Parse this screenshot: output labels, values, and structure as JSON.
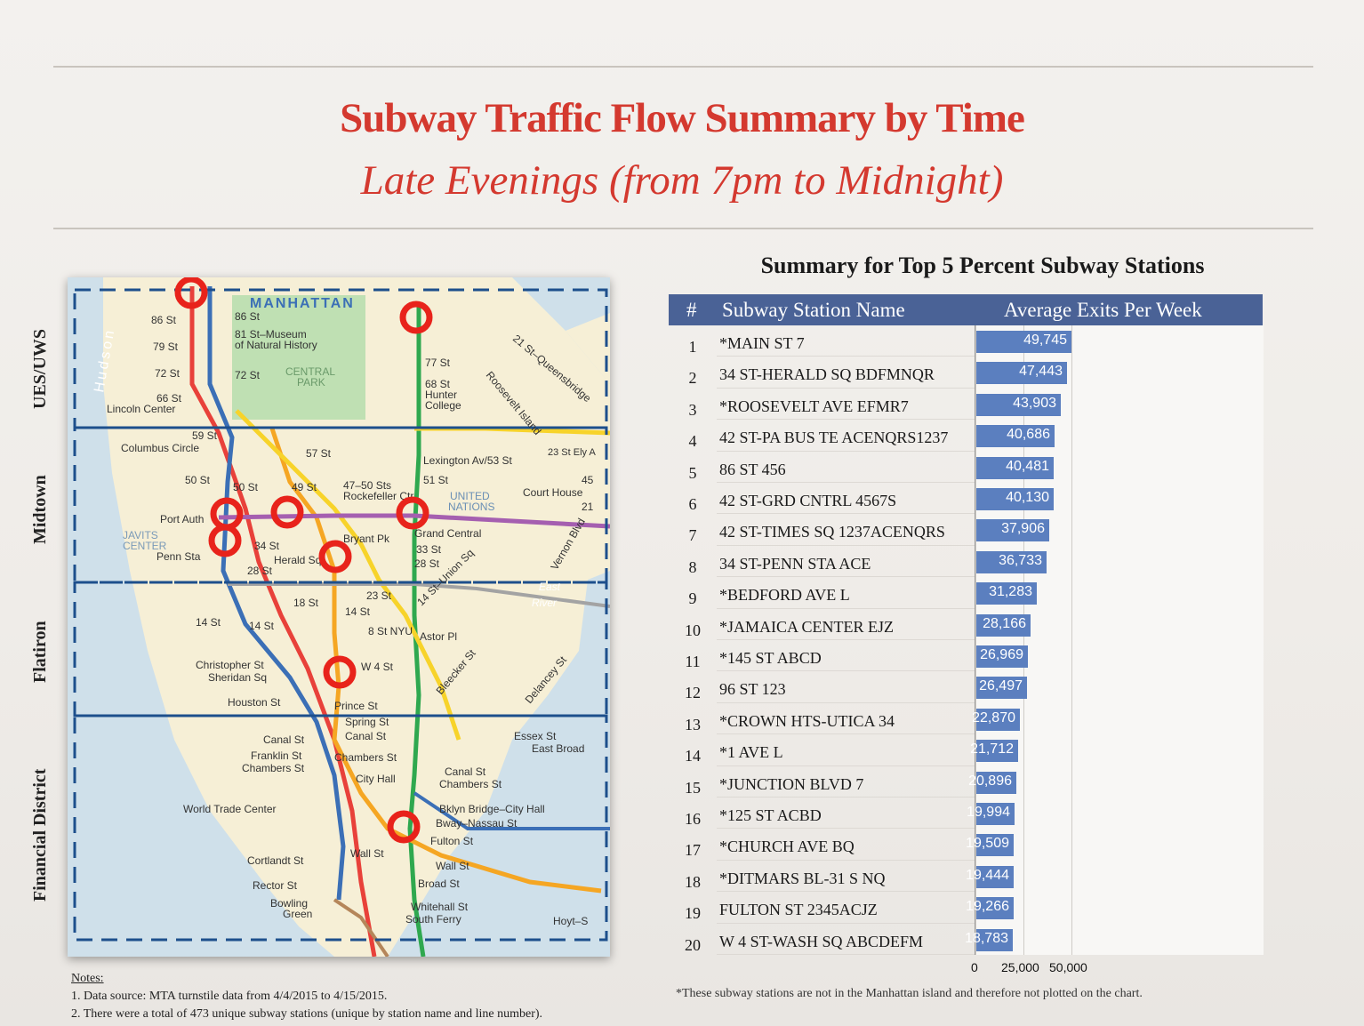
{
  "title": "Subway Traffic Flow Summary by Time",
  "subtitle": "Late Evenings (from 7pm to Midnight)",
  "map": {
    "region_labels": [
      "UES/UWS",
      "Midtown",
      "Flatiron",
      "Financial District"
    ],
    "water_label": "Hudson",
    "labels": {
      "manhattan": "MANHATTAN",
      "st86w": "86 St",
      "st86e": "86 St",
      "st79": "79 St",
      "st72w": "72 St",
      "st72e": "72 St",
      "st66": "66 St",
      "lincoln": "Lincoln Center",
      "museum": "81 St–Museum",
      "museum2": "of Natural History",
      "central_park": "CENTRAL",
      "central_park2": "PARK",
      "st77": "77 St",
      "st68": "68 St",
      "hunter": "Hunter",
      "college": "College",
      "st59": "59 St",
      "columbus": "Columbus Circle",
      "st57": "57 St",
      "lex": "Lexington Av/53 St",
      "st50": "50 St",
      "st49": "49 St",
      "rock": "47–50 Sts",
      "rock2": "Rockefeller Ctr",
      "st51": "51 St",
      "un": "UNITED",
      "un2": "NATIONS",
      "port": "Port Auth",
      "javits": "JAVITS",
      "center": "CENTER",
      "penn": "Penn Sta",
      "st34": "34 St",
      "herald": "Herald Sq",
      "bryant": "Bryant Pk",
      "grandc": "Grand Central",
      "st33": "33 St",
      "st28": "28 St",
      "st23": "23 St",
      "st18": "18 St",
      "st14w": "14 St",
      "st14": "14 St",
      "union": "14 St–Union Sq",
      "astor": "Astor Pl",
      "nyu": "8 St NYU",
      "christopher": "Christopher St",
      "sheridan": "Sheridan Sq",
      "w4": "W 4 St",
      "houston": "Houston St",
      "prince": "Prince St",
      "spring": "Spring St",
      "canalw": "Canal St",
      "canal": "Canal St",
      "franklin": "Franklin St",
      "chambersw": "Chambers St",
      "chambers": "Chambers St",
      "cityhall": "City Hall",
      "wtc": "World Trade Center",
      "bbridge": "Bklyn Bridge–City Hall",
      "bway": "Bway–Nassau St",
      "fulton": "Fulton St",
      "cortlandt": "Cortlandt St",
      "rector": "Rector St",
      "bowling": "Bowling",
      "green": "Green",
      "wall": "Wall St",
      "wall2": "Wall St",
      "broad": "Broad St",
      "whitehall": "Whitehall St",
      "southferry": "South Ferry",
      "hoyt": "Hoyt–S",
      "essex": "Essex St",
      "eastbroad": "East Broad",
      "delancey": "Delancey St",
      "bleecker": "Bleecker St",
      "eastriver": "East",
      "eastriver2": "River",
      "vernon": "Vernon Blvd",
      "queensboro": "21 St–Queensbridge",
      "roosevelt": "Roosevelt Island",
      "courthouse": "Court House",
      "st21": "21",
      "st45": "45",
      "ely": "23 St Ely A"
    }
  },
  "table": {
    "title": "Summary for Top 5 Percent Subway Stations",
    "headers": {
      "num": "#",
      "name": "Subway Station Name",
      "value": "Average Exits Per Week"
    }
  },
  "chart_data": {
    "type": "bar",
    "orientation": "horizontal",
    "categories": [
      "*MAIN ST 7",
      "34 ST-HERALD SQ BDFMNQR",
      "*ROOSEVELT AVE EFMR7",
      "42 ST-PA BUS TE ACENQRS1237",
      "86 ST 456",
      "42 ST-GRD CNTRL 4567S",
      "42 ST-TIMES SQ 1237ACENQRS",
      "34 ST-PENN STA ACE",
      "*BEDFORD AVE L",
      "*JAMAICA CENTER EJZ",
      "*145 ST ABCD",
      "96 ST 123",
      "*CROWN HTS-UTICA 34",
      "*1 AVE L",
      "*JUNCTION BLVD 7",
      "*125 ST ACBD",
      "*CHURCH AVE BQ",
      "*DITMARS BL-31 S NQ",
      "FULTON ST 2345ACJZ",
      "W 4 ST-WASH SQ ABCDEFM"
    ],
    "ranks": [
      1,
      2,
      3,
      4,
      5,
      6,
      7,
      8,
      9,
      10,
      11,
      12,
      13,
      14,
      15,
      16,
      17,
      18,
      19,
      20
    ],
    "values": [
      49745,
      47443,
      43903,
      40686,
      40481,
      40130,
      37906,
      36733,
      31283,
      28166,
      26969,
      26497,
      22870,
      21712,
      20896,
      19994,
      19509,
      19444,
      19266,
      18783
    ],
    "value_labels": [
      "49,745",
      "47,443",
      "43,903",
      "40,686",
      "40,481",
      "40,130",
      "37,906",
      "36,733",
      "31,283",
      "28,166",
      "26,969",
      "26,497",
      "22,870",
      "21,712",
      "20,896",
      "19,994",
      "19,509",
      "19,444",
      "19,266",
      "18,783"
    ],
    "xticks": [
      "0",
      "25,000",
      "50,000"
    ],
    "xtick_values": [
      0,
      25000,
      50000
    ],
    "xlim": [
      0,
      150000
    ],
    "bar_color": "#5b7fbf",
    "header_color": "#4a6296"
  },
  "notes": {
    "heading": "Notes:",
    "items": [
      "1.  Data source: MTA turnstile data from 4/4/2015 to 4/15/2015.",
      "2.  There were a total of 473 unique subway stations (unique by station name and line number)."
    ],
    "footnote": "*These subway stations are not in the Manhattan island and therefore not plotted on the chart."
  }
}
